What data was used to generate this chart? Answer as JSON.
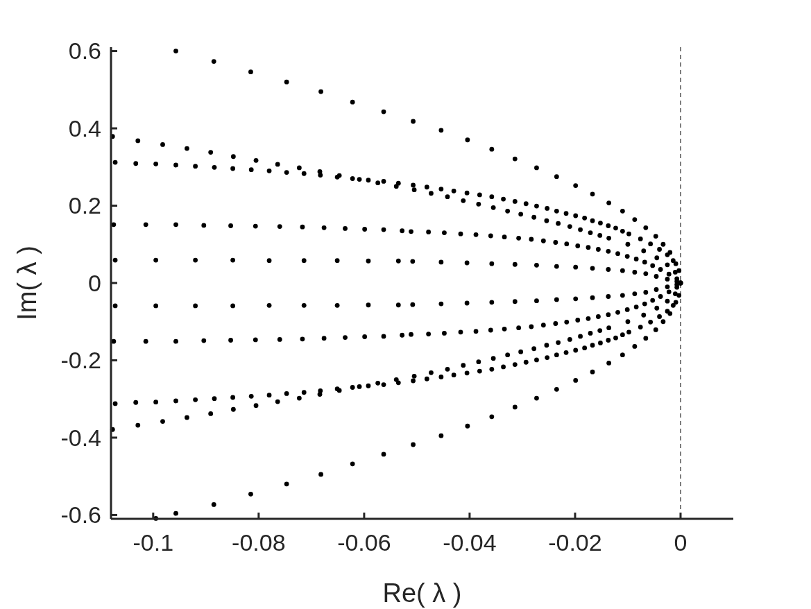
{
  "chart_data": {
    "type": "scatter",
    "xlabel": "Re( λ )",
    "ylabel": "Im( λ )",
    "xlim": [
      -0.108,
      0.01
    ],
    "ylim": [
      -0.61,
      0.61
    ],
    "xticks": [
      -0.1,
      -0.08,
      -0.06,
      -0.04,
      -0.02,
      0
    ],
    "yticks": [
      -0.6,
      -0.4,
      -0.2,
      0,
      0.2,
      0.4,
      0.6
    ],
    "grid": false,
    "marker": "circle",
    "ref_lines": [
      {
        "axis": "x",
        "value": 0,
        "color": "#000000",
        "line_style": "dashed"
      }
    ],
    "series": [
      {
        "color": "#000000",
        "x": [
          -0.0957,
          -0.0885,
          -0.0815,
          -0.0747,
          -0.0682,
          -0.0622,
          -0.0563,
          -0.0507,
          -0.0454,
          -0.0404,
          -0.0358,
          -0.0314,
          -0.0273,
          -0.0235,
          -0.0199,
          -0.0167,
          -0.0136,
          -0.011,
          -0.0087,
          -0.0066,
          -0.0047,
          -0.0033,
          -0.002,
          -0.0009,
          0
        ],
        "values": [
          0.6,
          0.573,
          0.546,
          0.52,
          0.495,
          0.468,
          0.443,
          0.418,
          0.395,
          0.37,
          0.346,
          0.321,
          0.298,
          0.275,
          0.252,
          0.23,
          0.207,
          0.186,
          0.164,
          0.143,
          0.121,
          0.1,
          0.079,
          0.05,
          0
        ]
      },
      {
        "color": "#000000",
        "x": [
          -0.1077,
          -0.1029,
          -0.0982,
          -0.0936,
          -0.0891,
          -0.0848,
          -0.0805,
          -0.0764,
          -0.0723,
          -0.0684,
          -0.0647,
          -0.0609,
          -0.0574,
          -0.0539,
          -0.0505,
          -0.0473,
          -0.0442,
          -0.0412,
          -0.0383,
          -0.0355,
          -0.0328,
          -0.0303,
          -0.0278,
          -0.0254,
          -0.0232,
          -0.021,
          -0.019,
          -0.0171,
          -0.0153,
          -0.0136,
          -0.01,
          -0.007,
          -0.0045,
          -0.0025,
          -0.001,
          0
        ],
        "values": [
          0.379,
          0.368,
          0.358,
          0.348,
          0.338,
          0.327,
          0.317,
          0.307,
          0.298,
          0.288,
          0.278,
          0.268,
          0.259,
          0.25,
          0.241,
          0.232,
          0.223,
          0.213,
          0.204,
          0.195,
          0.186,
          0.178,
          0.17,
          0.161,
          0.154,
          0.146,
          0.138,
          0.13,
          0.123,
          0.116,
          0.1,
          0.083,
          0.065,
          0.047,
          0.028,
          0
        ]
      },
      {
        "color": "#000000",
        "x": [
          -0.1072,
          -0.1033,
          -0.0995,
          -0.0957,
          -0.092,
          -0.0884,
          -0.0849,
          -0.0814,
          -0.078,
          -0.0747,
          -0.0714,
          -0.0683,
          -0.0651,
          -0.0622,
          -0.0592,
          -0.0563,
          -0.0535,
          -0.0507,
          -0.0481,
          -0.0454,
          -0.043,
          -0.0405,
          -0.0381,
          -0.0358,
          -0.0336,
          -0.0314,
          -0.0293,
          -0.0273,
          -0.0253,
          -0.0235,
          -0.0217,
          -0.0199,
          -0.0182,
          -0.0167,
          -0.0152,
          -0.0137,
          -0.0123,
          -0.011,
          -0.0098,
          -0.0076,
          -0.0057,
          -0.004,
          -0.0025,
          -0.0014,
          -0.0003
        ],
        "values": [
          0.312,
          0.309,
          0.308,
          0.305,
          0.302,
          0.299,
          0.296,
          0.293,
          0.29,
          0.286,
          0.283,
          0.279,
          0.274,
          0.27,
          0.266,
          0.263,
          0.258,
          0.253,
          0.248,
          0.243,
          0.238,
          0.233,
          0.228,
          0.223,
          0.217,
          0.211,
          0.205,
          0.199,
          0.193,
          0.186,
          0.18,
          0.174,
          0.168,
          0.161,
          0.155,
          0.148,
          0.142,
          0.134,
          0.127,
          0.114,
          0.101,
          0.087,
          0.073,
          0.058,
          0.032
        ]
      },
      {
        "color": "#000000",
        "x": [
          -0.1075,
          -0.1014,
          -0.0957,
          -0.0904,
          -0.0853,
          -0.0806,
          -0.076,
          -0.0717,
          -0.0676,
          -0.0636,
          -0.0599,
          -0.0563,
          -0.0528,
          -0.0511,
          -0.0478,
          -0.0448,
          -0.0417,
          -0.0388,
          -0.036,
          -0.0334,
          -0.0307,
          -0.0283,
          -0.026,
          -0.0237,
          -0.0216,
          -0.0195,
          -0.0175,
          -0.0156,
          -0.0137,
          -0.0119,
          -0.0101,
          -0.0084,
          -0.0068,
          -0.0053,
          -0.0038,
          -0.0022,
          -0.0007
        ],
        "values": [
          0.151,
          0.151,
          0.151,
          0.149,
          0.148,
          0.147,
          0.146,
          0.145,
          0.143,
          0.141,
          0.139,
          0.138,
          0.135,
          0.133,
          0.132,
          0.13,
          0.127,
          0.125,
          0.122,
          0.119,
          0.116,
          0.113,
          0.109,
          0.105,
          0.101,
          0.096,
          0.092,
          0.087,
          0.082,
          0.076,
          0.069,
          0.062,
          0.054,
          0.045,
          0.035,
          0.023,
          0.011
        ]
      },
      {
        "color": "#000000",
        "x": [
          -0.1072,
          -0.0995,
          -0.092,
          -0.0849,
          -0.078,
          -0.0714,
          -0.0651,
          -0.0592,
          -0.0535,
          -0.0508,
          -0.0454,
          -0.0405,
          -0.0358,
          -0.0314,
          -0.0273,
          -0.0235,
          -0.0199,
          -0.0167,
          -0.0137,
          -0.011,
          -0.0087,
          -0.0066,
          -0.0046,
          -0.0025,
          -0.0007
        ],
        "values": [
          0.059,
          0.059,
          0.059,
          0.059,
          0.058,
          0.058,
          0.058,
          0.057,
          0.057,
          0.056,
          0.054,
          0.052,
          0.05,
          0.048,
          0.046,
          0.043,
          0.041,
          0.038,
          0.035,
          0.032,
          0.028,
          0.024,
          0.017,
          0.01,
          0.004
        ]
      },
      {
        "color": "#000000",
        "x": [
          -0.1072,
          -0.0995,
          -0.092,
          -0.0849,
          -0.078,
          -0.0714,
          -0.0651,
          -0.0592,
          -0.0535,
          -0.0508,
          -0.0454,
          -0.0405,
          -0.0358,
          -0.0314,
          -0.0273,
          -0.0235,
          -0.0199,
          -0.0167,
          -0.0137,
          -0.011,
          -0.0087,
          -0.0066,
          -0.0046,
          -0.0025,
          -0.0007
        ],
        "values": [
          -0.059,
          -0.059,
          -0.059,
          -0.059,
          -0.058,
          -0.058,
          -0.058,
          -0.057,
          -0.057,
          -0.056,
          -0.054,
          -0.052,
          -0.05,
          -0.048,
          -0.046,
          -0.043,
          -0.041,
          -0.038,
          -0.035,
          -0.032,
          -0.028,
          -0.024,
          -0.017,
          -0.01,
          -0.004
        ]
      },
      {
        "color": "#000000",
        "x": [
          -0.1075,
          -0.1014,
          -0.0957,
          -0.0904,
          -0.0853,
          -0.0806,
          -0.076,
          -0.0717,
          -0.0676,
          -0.0636,
          -0.0599,
          -0.0563,
          -0.0528,
          -0.0511,
          -0.0478,
          -0.0448,
          -0.0417,
          -0.0388,
          -0.036,
          -0.0334,
          -0.0307,
          -0.0283,
          -0.026,
          -0.0237,
          -0.0216,
          -0.0195,
          -0.0175,
          -0.0156,
          -0.0137,
          -0.0119,
          -0.0101,
          -0.0084,
          -0.0068,
          -0.0053,
          -0.0038,
          -0.0022,
          -0.0007
        ],
        "values": [
          -0.151,
          -0.151,
          -0.151,
          -0.149,
          -0.148,
          -0.147,
          -0.146,
          -0.145,
          -0.143,
          -0.141,
          -0.139,
          -0.138,
          -0.135,
          -0.133,
          -0.132,
          -0.13,
          -0.127,
          -0.125,
          -0.122,
          -0.119,
          -0.116,
          -0.113,
          -0.109,
          -0.105,
          -0.101,
          -0.096,
          -0.092,
          -0.087,
          -0.082,
          -0.076,
          -0.069,
          -0.062,
          -0.054,
          -0.045,
          -0.035,
          -0.023,
          -0.011
        ]
      },
      {
        "color": "#000000",
        "x": [
          -0.1072,
          -0.1033,
          -0.0995,
          -0.0957,
          -0.092,
          -0.0884,
          -0.0849,
          -0.0814,
          -0.078,
          -0.0747,
          -0.0714,
          -0.0683,
          -0.0651,
          -0.0622,
          -0.0592,
          -0.0563,
          -0.0535,
          -0.0507,
          -0.0481,
          -0.0454,
          -0.043,
          -0.0405,
          -0.0381,
          -0.0358,
          -0.0336,
          -0.0314,
          -0.0293,
          -0.0273,
          -0.0253,
          -0.0235,
          -0.0217,
          -0.0199,
          -0.0182,
          -0.0167,
          -0.0152,
          -0.0137,
          -0.0123,
          -0.011,
          -0.0098,
          -0.0076,
          -0.0057,
          -0.004,
          -0.0025,
          -0.0014,
          -0.0003
        ],
        "values": [
          -0.312,
          -0.309,
          -0.308,
          -0.305,
          -0.302,
          -0.299,
          -0.296,
          -0.293,
          -0.29,
          -0.286,
          -0.283,
          -0.279,
          -0.274,
          -0.27,
          -0.266,
          -0.263,
          -0.258,
          -0.253,
          -0.248,
          -0.243,
          -0.238,
          -0.233,
          -0.228,
          -0.223,
          -0.217,
          -0.211,
          -0.205,
          -0.199,
          -0.193,
          -0.186,
          -0.18,
          -0.174,
          -0.168,
          -0.161,
          -0.155,
          -0.148,
          -0.142,
          -0.134,
          -0.127,
          -0.114,
          -0.101,
          -0.087,
          -0.073,
          -0.058,
          -0.032
        ]
      },
      {
        "color": "#000000",
        "x": [
          -0.1077,
          -0.1029,
          -0.0982,
          -0.0936,
          -0.0891,
          -0.0848,
          -0.0805,
          -0.0764,
          -0.0723,
          -0.0684,
          -0.0647,
          -0.0609,
          -0.0574,
          -0.0539,
          -0.0505,
          -0.0473,
          -0.0442,
          -0.0412,
          -0.0383,
          -0.0355,
          -0.0328,
          -0.0303,
          -0.0278,
          -0.0254,
          -0.0232,
          -0.021,
          -0.019,
          -0.0171,
          -0.0153,
          -0.0136,
          -0.01,
          -0.007,
          -0.0045,
          -0.0025,
          -0.001,
          0
        ],
        "values": [
          -0.379,
          -0.368,
          -0.358,
          -0.348,
          -0.338,
          -0.327,
          -0.317,
          -0.307,
          -0.298,
          -0.288,
          -0.278,
          -0.268,
          -0.259,
          -0.25,
          -0.241,
          -0.232,
          -0.223,
          -0.213,
          -0.204,
          -0.195,
          -0.186,
          -0.178,
          -0.17,
          -0.161,
          -0.154,
          -0.146,
          -0.138,
          -0.13,
          -0.123,
          -0.116,
          -0.1,
          -0.083,
          -0.065,
          -0.047,
          -0.028,
          0
        ]
      },
      {
        "color": "#000000",
        "x": [
          -0.0995,
          -0.0957,
          -0.0885,
          -0.0815,
          -0.0747,
          -0.0682,
          -0.0622,
          -0.0563,
          -0.0507,
          -0.0454,
          -0.0404,
          -0.0358,
          -0.0314,
          -0.0273,
          -0.0235,
          -0.0199,
          -0.0167,
          -0.0136,
          -0.011,
          -0.0087,
          -0.0066,
          -0.0047,
          -0.0033,
          -0.002,
          -0.0009,
          0
        ],
        "values": [
          -0.609,
          -0.596,
          -0.573,
          -0.546,
          -0.52,
          -0.495,
          -0.468,
          -0.443,
          -0.418,
          -0.395,
          -0.37,
          -0.346,
          -0.321,
          -0.298,
          -0.275,
          -0.252,
          -0.23,
          -0.207,
          -0.186,
          -0.164,
          -0.143,
          -0.121,
          -0.1,
          -0.079,
          -0.05,
          0
        ]
      }
    ]
  }
}
